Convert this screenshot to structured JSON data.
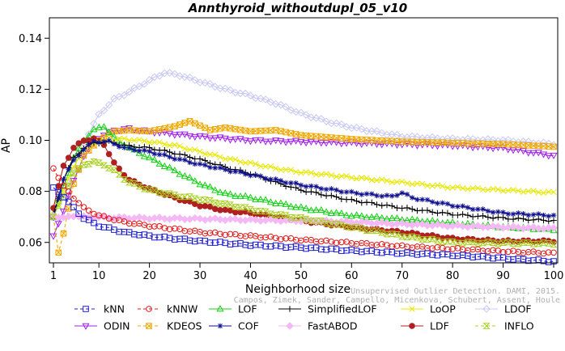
{
  "chart_data": {
    "type": "line",
    "title": "Annthyroid_withoutdupl_05_v10",
    "xlabel": "Neighborhood size",
    "ylabel": "AP",
    "xlim": [
      1,
      100
    ],
    "ylim": [
      0.052,
      0.148
    ],
    "xticks": [
      1,
      10,
      20,
      30,
      40,
      50,
      60,
      70,
      80,
      90,
      100
    ],
    "yticks": [
      0.06,
      0.08,
      0.1,
      0.12,
      0.14
    ],
    "ytick_labels": [
      "0.06",
      "0.08",
      "0.10",
      "0.12",
      "0.14"
    ],
    "grid": false,
    "legend_position": "bottom",
    "credit": "Campos, Zimek, Sander, Campello, Micenkova, Schubert, Assent, Houle",
    "credit_prefix": "Unsupervised Outlier Detection. DAMI, 2015.",
    "series": [
      {
        "name": "kNN",
        "color": "#1f1fd0",
        "marker": "square",
        "lty": "dash",
        "points": [
          [
            1,
            0.0815
          ],
          [
            3,
            0.078
          ],
          [
            5,
            0.0735
          ],
          [
            7,
            0.0695
          ],
          [
            10,
            0.0665
          ],
          [
            15,
            0.064
          ],
          [
            20,
            0.0625
          ],
          [
            30,
            0.0605
          ],
          [
            40,
            0.059
          ],
          [
            50,
            0.058
          ],
          [
            60,
            0.0568
          ],
          [
            70,
            0.0558
          ],
          [
            80,
            0.055
          ],
          [
            90,
            0.0538
          ],
          [
            100,
            0.0525
          ]
        ]
      },
      {
        "name": "kNNW",
        "color": "#e01818",
        "marker": "circle",
        "lty": "dash",
        "points": [
          [
            1,
            0.089
          ],
          [
            2,
            0.0855
          ],
          [
            3,
            0.082
          ],
          [
            5,
            0.0775
          ],
          [
            7,
            0.0735
          ],
          [
            10,
            0.0705
          ],
          [
            15,
            0.068
          ],
          [
            20,
            0.0665
          ],
          [
            30,
            0.064
          ],
          [
            40,
            0.0625
          ],
          [
            50,
            0.061
          ],
          [
            60,
            0.0598
          ],
          [
            70,
            0.0585
          ],
          [
            80,
            0.0575
          ],
          [
            90,
            0.0565
          ],
          [
            100,
            0.0558
          ]
        ]
      },
      {
        "name": "LOF",
        "color": "#18d018",
        "marker": "triangle",
        "lty": "solid",
        "points": [
          [
            1,
            0.071
          ],
          [
            3,
            0.082
          ],
          [
            5,
            0.093
          ],
          [
            7,
            0.1
          ],
          [
            9,
            0.104
          ],
          [
            11,
            0.1055
          ],
          [
            13,
            0.101
          ],
          [
            16,
            0.097
          ],
          [
            20,
            0.093
          ],
          [
            25,
            0.088
          ],
          [
            30,
            0.083
          ],
          [
            35,
            0.079
          ],
          [
            40,
            0.0775
          ],
          [
            45,
            0.0755
          ],
          [
            50,
            0.0735
          ],
          [
            60,
            0.0705
          ],
          [
            70,
            0.069
          ],
          [
            80,
            0.0675
          ],
          [
            90,
            0.066
          ],
          [
            100,
            0.065
          ]
        ]
      },
      {
        "name": "SimplifiedLOF",
        "color": "#000000",
        "marker": "plus",
        "lty": "solid",
        "points": [
          [
            1,
            0.071
          ],
          [
            3,
            0.085
          ],
          [
            5,
            0.093
          ],
          [
            7,
            0.097
          ],
          [
            9,
            0.099
          ],
          [
            12,
            0.0995
          ],
          [
            15,
            0.098
          ],
          [
            20,
            0.097
          ],
          [
            25,
            0.095
          ],
          [
            30,
            0.0925
          ],
          [
            35,
            0.0895
          ],
          [
            40,
            0.087
          ],
          [
            45,
            0.0835
          ],
          [
            50,
            0.0805
          ],
          [
            60,
            0.0765
          ],
          [
            70,
            0.0735
          ],
          [
            80,
            0.071
          ],
          [
            90,
            0.0695
          ],
          [
            100,
            0.0685
          ]
        ]
      },
      {
        "name": "LoOP",
        "color": "#e8e800",
        "marker": "cross",
        "lty": "solid",
        "points": [
          [
            1,
            0.0705
          ],
          [
            3,
            0.08
          ],
          [
            5,
            0.09
          ],
          [
            7,
            0.096
          ],
          [
            9,
            0.099
          ],
          [
            12,
            0.1
          ],
          [
            15,
            0.1005
          ],
          [
            20,
            0.0995
          ],
          [
            25,
            0.098
          ],
          [
            30,
            0.0955
          ],
          [
            35,
            0.093
          ],
          [
            40,
            0.091
          ],
          [
            45,
            0.089
          ],
          [
            50,
            0.0875
          ],
          [
            60,
            0.0855
          ],
          [
            70,
            0.0835
          ],
          [
            80,
            0.0815
          ],
          [
            90,
            0.0805
          ],
          [
            100,
            0.0795
          ]
        ]
      },
      {
        "name": "LDOF",
        "color": "#c8c8f4",
        "marker": "diamond",
        "lty": "solid",
        "points": [
          [
            1,
            0.0705
          ],
          [
            3,
            0.079
          ],
          [
            5,
            0.088
          ],
          [
            7,
            0.099
          ],
          [
            10,
            0.11
          ],
          [
            13,
            0.116
          ],
          [
            16,
            0.119
          ],
          [
            20,
            0.1235
          ],
          [
            23,
            0.1265
          ],
          [
            26,
            0.1255
          ],
          [
            30,
            0.123
          ],
          [
            35,
            0.12
          ],
          [
            40,
            0.1175
          ],
          [
            45,
            0.1145
          ],
          [
            50,
            0.1105
          ],
          [
            55,
            0.1075
          ],
          [
            60,
            0.105
          ],
          [
            70,
            0.1015
          ],
          [
            80,
            0.1005
          ],
          [
            90,
            0.1
          ],
          [
            100,
            0.0985
          ]
        ]
      },
      {
        "name": "ODIN",
        "color": "#a020e8",
        "marker": "triangle-down",
        "lty": "solid",
        "points": [
          [
            1,
            0.0625
          ],
          [
            3,
            0.0725
          ],
          [
            5,
            0.084
          ],
          [
            7,
            0.094
          ],
          [
            10,
            0.101
          ],
          [
            13,
            0.104
          ],
          [
            16,
            0.1045
          ],
          [
            20,
            0.1035
          ],
          [
            25,
            0.1025
          ],
          [
            30,
            0.1015
          ],
          [
            40,
            0.1
          ],
          [
            50,
            0.0995
          ],
          [
            60,
            0.099
          ],
          [
            70,
            0.0985
          ],
          [
            80,
            0.098
          ],
          [
            90,
            0.097
          ],
          [
            100,
            0.094
          ]
        ]
      },
      {
        "name": "KDEOS",
        "color": "#f0a800",
        "marker": "boxed-x",
        "lty": "dash",
        "points": [
          [
            1,
            0.07
          ],
          [
            2,
            0.056
          ],
          [
            3,
            0.0635
          ],
          [
            5,
            0.083
          ],
          [
            7,
            0.094
          ],
          [
            10,
            0.1
          ],
          [
            13,
            0.1035
          ],
          [
            16,
            0.104
          ],
          [
            20,
            0.1035
          ],
          [
            25,
            0.1055
          ],
          [
            28,
            0.1075
          ],
          [
            32,
            0.104
          ],
          [
            35,
            0.105
          ],
          [
            40,
            0.1035
          ],
          [
            45,
            0.104
          ],
          [
            50,
            0.102
          ],
          [
            60,
            0.1005
          ],
          [
            70,
            0.0995
          ],
          [
            80,
            0.099
          ],
          [
            90,
            0.0985
          ],
          [
            100,
            0.0975
          ]
        ]
      },
      {
        "name": "LDF",
        "color": "#b02020",
        "marker": "circle-filled",
        "lty": "solid",
        "points": [
          [
            1,
            0.0735
          ],
          [
            3,
            0.09
          ],
          [
            5,
            0.097
          ],
          [
            7,
            0.1
          ],
          [
            9,
            0.1005
          ],
          [
            11,
            0.0985
          ],
          [
            13,
            0.091
          ],
          [
            16,
            0.0845
          ],
          [
            20,
            0.081
          ],
          [
            25,
            0.0775
          ],
          [
            30,
            0.0745
          ],
          [
            35,
            0.0725
          ],
          [
            40,
            0.0715
          ],
          [
            45,
            0.07
          ],
          [
            50,
            0.0685
          ],
          [
            60,
            0.066
          ],
          [
            70,
            0.064
          ],
          [
            80,
            0.0615
          ],
          [
            90,
            0.0605
          ],
          [
            100,
            0.0605
          ]
        ]
      },
      {
        "name": "COF",
        "color": "#101090",
        "marker": "asterisk",
        "lty": "solid",
        "points": [
          [
            1,
            0.0695
          ],
          [
            3,
            0.085
          ],
          [
            5,
            0.092
          ],
          [
            7,
            0.0965
          ],
          [
            9,
            0.0995
          ],
          [
            12,
            0.0995
          ],
          [
            15,
            0.097
          ],
          [
            20,
            0.0955
          ],
          [
            25,
            0.093
          ],
          [
            30,
            0.0905
          ],
          [
            35,
            0.0885
          ],
          [
            40,
            0.0865
          ],
          [
            45,
            0.0845
          ],
          [
            50,
            0.0825
          ],
          [
            55,
            0.081
          ],
          [
            60,
            0.0795
          ],
          [
            65,
            0.0785
          ],
          [
            68,
            0.078
          ],
          [
            70,
            0.0795
          ],
          [
            72,
            0.0775
          ],
          [
            80,
            0.0745
          ],
          [
            90,
            0.0715
          ],
          [
            100,
            0.0705
          ]
        ]
      },
      {
        "name": "FastABOD",
        "color": "#f4b8f4",
        "marker": "diamond-filled",
        "lty": "solid",
        "points": [
          [
            1,
            0.0705
          ],
          [
            3,
            0.0695
          ],
          [
            5,
            0.0705
          ],
          [
            7,
            0.07
          ],
          [
            10,
            0.0698
          ],
          [
            20,
            0.0695
          ],
          [
            30,
            0.0692
          ],
          [
            40,
            0.0688
          ],
          [
            50,
            0.0685
          ],
          [
            60,
            0.068
          ],
          [
            70,
            0.0672
          ],
          [
            80,
            0.0665
          ],
          [
            90,
            0.066
          ],
          [
            100,
            0.0655
          ]
        ]
      },
      {
        "name": "INFLO",
        "color": "#a8d020",
        "marker": "hourglass",
        "lty": "dash",
        "points": [
          [
            1,
            0.07
          ],
          [
            3,
            0.078
          ],
          [
            5,
            0.087
          ],
          [
            7,
            0.0905
          ],
          [
            9,
            0.0915
          ],
          [
            11,
            0.0905
          ],
          [
            13,
            0.088
          ],
          [
            16,
            0.0835
          ],
          [
            20,
            0.0805
          ],
          [
            25,
            0.0785
          ],
          [
            30,
            0.077
          ],
          [
            35,
            0.075
          ],
          [
            40,
            0.073
          ],
          [
            45,
            0.071
          ],
          [
            50,
            0.0695
          ],
          [
            60,
            0.066
          ],
          [
            70,
            0.0625
          ],
          [
            80,
            0.06
          ],
          [
            90,
            0.0598
          ],
          [
            100,
            0.0595
          ]
        ]
      }
    ]
  }
}
